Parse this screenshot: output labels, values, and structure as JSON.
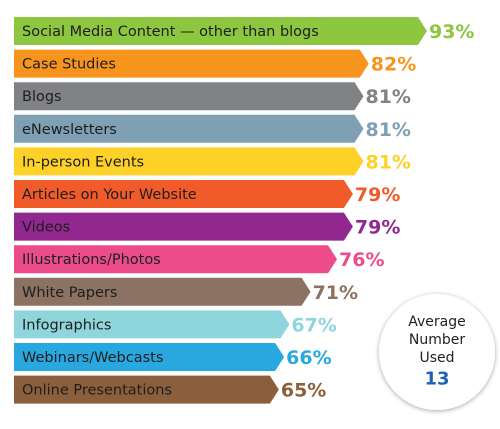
{
  "chart_data": {
    "type": "bar",
    "orientation": "horizontal",
    "categories": [
      "Social Media Content — other than blogs",
      "Case Studies",
      "Blogs",
      "eNewsletters",
      "In-person Events",
      "Articles on Your Website",
      "Videos",
      "Illustrations/Photos",
      "White Papers",
      "Infographics",
      "Webinars/Webcasts",
      "Online Presentations"
    ],
    "values": [
      93,
      82,
      81,
      81,
      81,
      79,
      79,
      76,
      71,
      67,
      66,
      65
    ],
    "value_labels": [
      "93%",
      "82%",
      "81%",
      "81%",
      "81%",
      "79%",
      "79%",
      "76%",
      "71%",
      "67%",
      "66%",
      "65%"
    ],
    "colors": [
      "#8dc63f",
      "#f7941d",
      "#808285",
      "#7f9fb3",
      "#fdd128",
      "#f15a29",
      "#92278f",
      "#ec4d8a",
      "#8b7262",
      "#8fd6dc",
      "#29a8e0",
      "#8b5e3c"
    ],
    "average": {
      "lines": [
        "Average",
        "Number",
        "Used"
      ],
      "value": 13
    }
  }
}
